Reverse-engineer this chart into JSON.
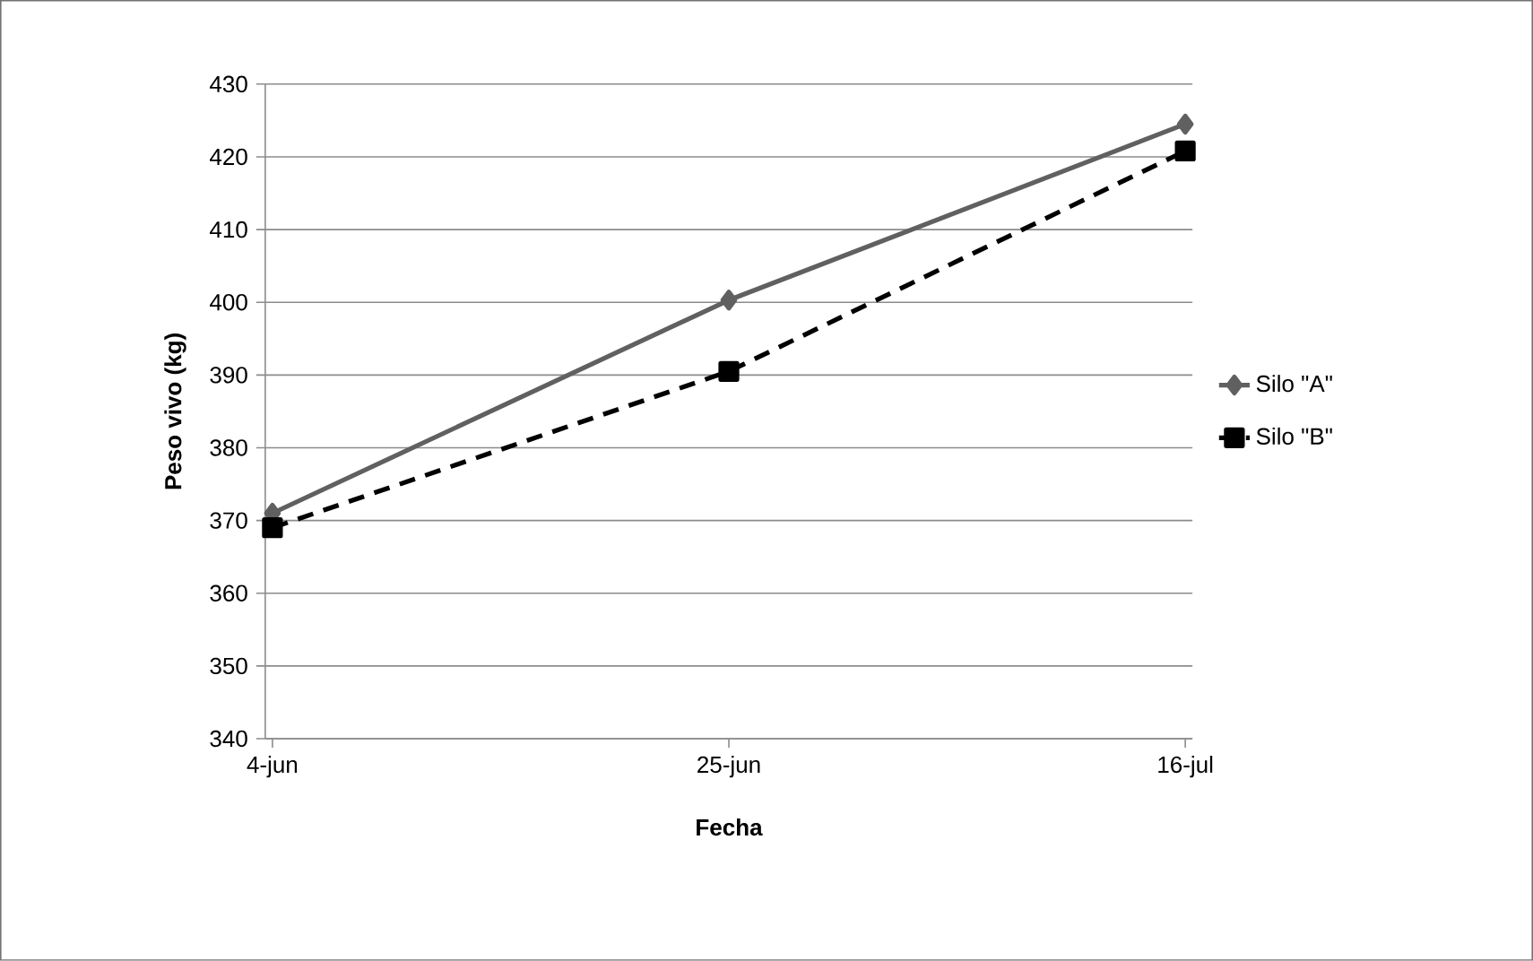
{
  "chart_data": {
    "type": "line",
    "xlabel": "Fecha",
    "ylabel": "Peso vivo (kg)",
    "categories": [
      "4-jun",
      "25-jun",
      "16-jul"
    ],
    "series": [
      {
        "name": "Silo \"A\"",
        "color": "#606060",
        "values": [
          371,
          400.3,
          424.5
        ],
        "marker": "diamond",
        "line_style": "solid"
      },
      {
        "name": "Silo \"B\"",
        "color": "#000000",
        "values": [
          369,
          390.5,
          420.8
        ],
        "marker": "square",
        "line_style": "dashed"
      }
    ],
    "ylim": [
      340,
      430
    ],
    "yticks": [
      340,
      350,
      360,
      370,
      380,
      390,
      400,
      410,
      420,
      430
    ],
    "grid": "y",
    "legend": "right"
  }
}
